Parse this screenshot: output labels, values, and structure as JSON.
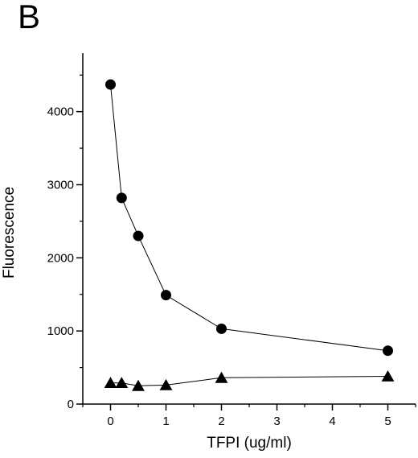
{
  "panel_label": "B",
  "chart_data": {
    "type": "scatter",
    "title": "",
    "xlabel": "TFPI (ug/ml)",
    "ylabel": "Fluorescence",
    "xlim": [
      -0.5,
      5.5
    ],
    "ylim": [
      0,
      4800
    ],
    "x_ticks": [
      0,
      1,
      2,
      3,
      4,
      5
    ],
    "y_ticks": [
      0,
      1000,
      2000,
      3000,
      4000
    ],
    "grid": false,
    "legend": "none",
    "series": [
      {
        "marker": "circle",
        "color": "#000000",
        "x": [
          0,
          0.2,
          0.5,
          1,
          2,
          5
        ],
        "y": [
          4370,
          2820,
          2300,
          1490,
          1030,
          730
        ]
      },
      {
        "marker": "triangle",
        "color": "#000000",
        "x": [
          0,
          0.2,
          0.5,
          1,
          2,
          5
        ],
        "y": [
          290,
          290,
          250,
          260,
          360,
          380
        ]
      }
    ]
  }
}
